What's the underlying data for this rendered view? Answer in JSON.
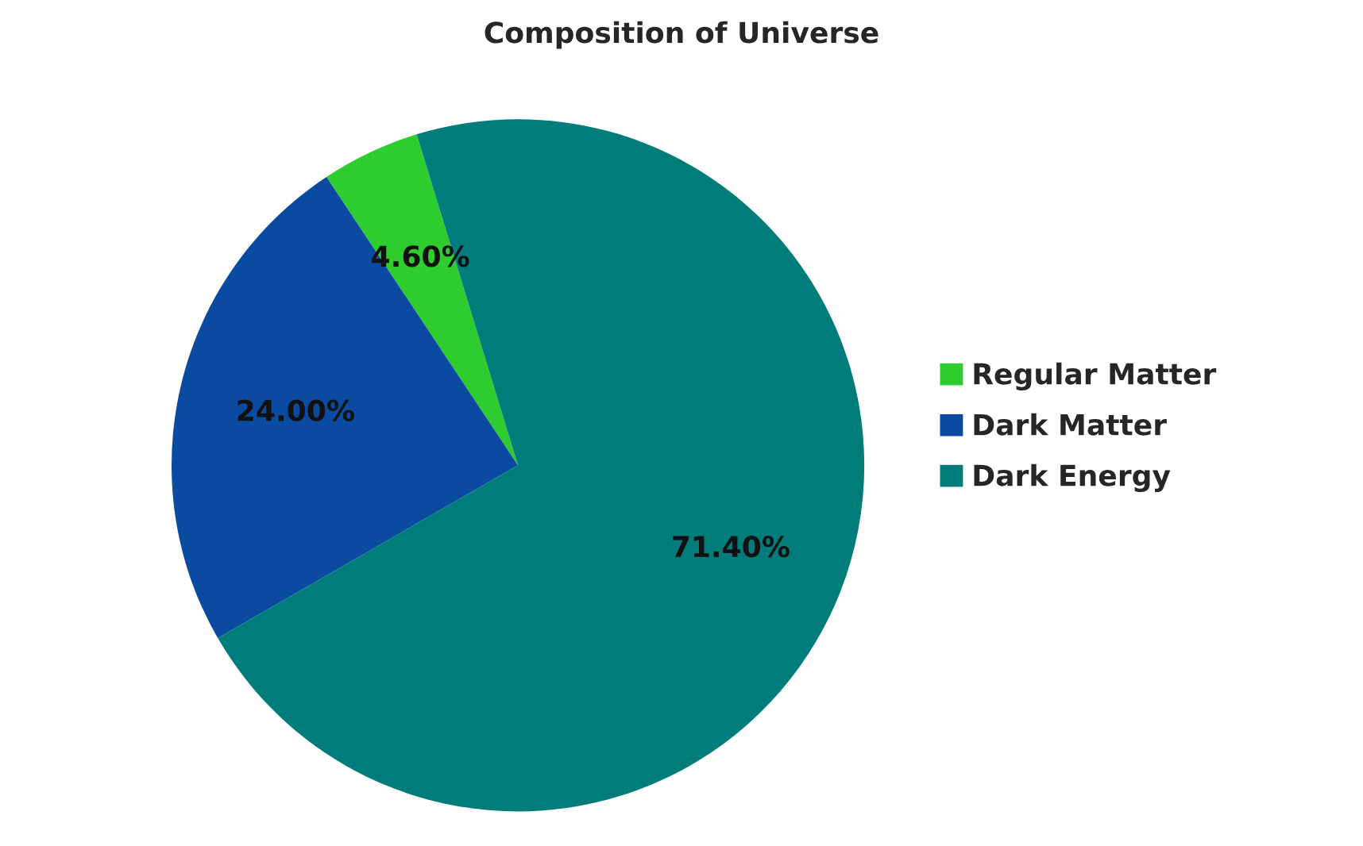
{
  "chart_data": {
    "type": "pie",
    "title": "Composition of Universe",
    "categories": [
      "Regular Matter",
      "Dark Matter",
      "Dark Energy"
    ],
    "values": [
      4.6,
      24.0,
      71.4
    ],
    "colors": [
      "#2ecc2e",
      "#0a4aa0",
      "#007d7a"
    ],
    "value_labels": [
      "4.60%",
      "24.00%",
      "71.40%"
    ],
    "legend": "right"
  }
}
